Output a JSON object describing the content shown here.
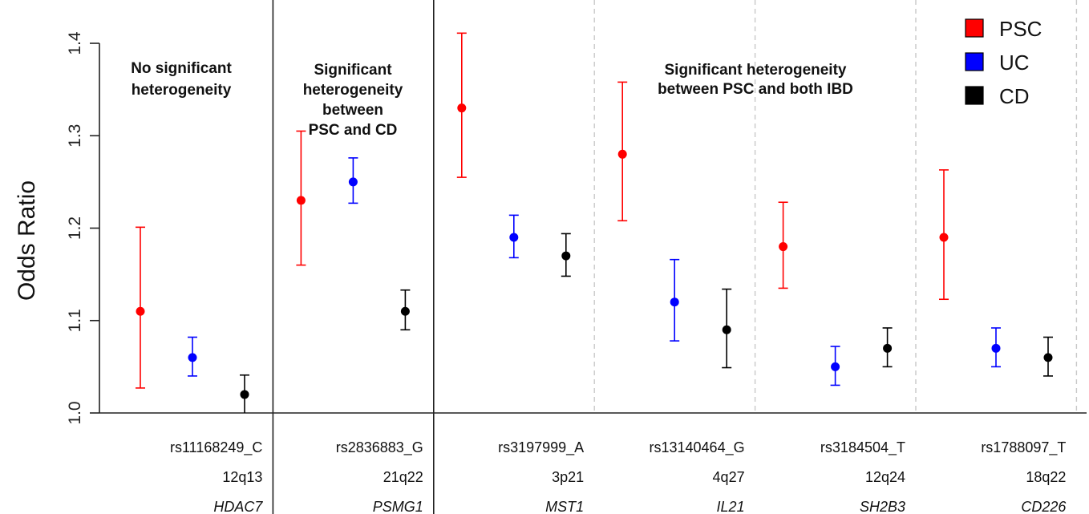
{
  "chart_data": {
    "type": "scatter",
    "ylabel": "Odds Ratio",
    "ylim": [
      1.0,
      1.4
    ],
    "yticks": [
      "1.0",
      "1.1",
      "1.2",
      "1.3",
      "1.4"
    ],
    "legend_position": "top-right",
    "categories": [
      {
        "snp": "rs11168249_C",
        "locus": "12q13",
        "gene": "HDAC7"
      },
      {
        "snp": "rs2836883_G",
        "locus": "21q22",
        "gene": "PSMG1"
      },
      {
        "snp": "rs3197999_A",
        "locus": "3p21",
        "gene": "MST1"
      },
      {
        "snp": "rs13140464_G",
        "locus": "4q27",
        "gene": "IL21"
      },
      {
        "snp": "rs3184504_T",
        "locus": "12q24",
        "gene": "SH2B3"
      },
      {
        "snp": "rs1788097_T",
        "locus": "18q22",
        "gene": "CD226"
      }
    ],
    "series": [
      {
        "name": "PSC",
        "color": "#ff0000",
        "values": [
          1.11,
          1.23,
          1.33,
          1.28,
          1.18,
          1.19
        ],
        "lower": [
          1.027,
          1.16,
          1.255,
          1.208,
          1.135,
          1.123
        ],
        "upper": [
          1.201,
          1.305,
          1.411,
          1.358,
          1.228,
          1.263
        ]
      },
      {
        "name": "UC",
        "color": "#0000ff",
        "values": [
          1.06,
          1.25,
          1.19,
          1.12,
          1.05,
          1.07
        ],
        "lower": [
          1.04,
          1.227,
          1.168,
          1.078,
          1.03,
          1.05
        ],
        "upper": [
          1.082,
          1.276,
          1.214,
          1.166,
          1.072,
          1.092
        ]
      },
      {
        "name": "CD",
        "color": "#000000",
        "values": [
          1.02,
          1.11,
          1.17,
          1.09,
          1.07,
          1.06
        ],
        "lower": [
          1.0,
          1.09,
          1.148,
          1.049,
          1.05,
          1.04
        ],
        "upper": [
          1.041,
          1.133,
          1.194,
          1.134,
          1.092,
          1.082
        ]
      }
    ],
    "annotations": [
      {
        "lines": [
          "No significant",
          "heterogeneity"
        ]
      },
      {
        "lines": [
          "Significant",
          "heterogeneity",
          "between",
          "PSC and CD"
        ]
      },
      {
        "lines": [
          "Significant heterogeneity",
          "between PSC and both IBD"
        ]
      }
    ],
    "grid": false
  }
}
